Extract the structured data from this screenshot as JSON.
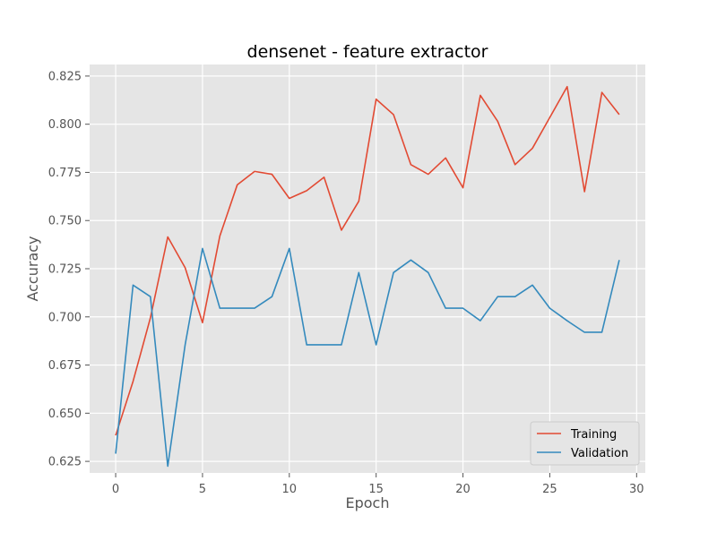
{
  "chart_data": {
    "type": "line",
    "title": "densenet - feature extractor",
    "xlabel": "Epoch",
    "ylabel": "Accuracy",
    "xlim": [
      -1.5,
      30.5
    ],
    "ylim": [
      0.619,
      0.831
    ],
    "xticks": [
      0,
      5,
      10,
      15,
      20,
      25,
      30
    ],
    "xtick_labels": [
      "0",
      "5",
      "10",
      "15",
      "20",
      "25",
      "30"
    ],
    "yticks": [
      0.625,
      0.65,
      0.675,
      0.7,
      0.725,
      0.75,
      0.775,
      0.8,
      0.825
    ],
    "ytick_labels": [
      "0.625",
      "0.650",
      "0.675",
      "0.700",
      "0.725",
      "0.750",
      "0.775",
      "0.800",
      "0.825"
    ],
    "grid": true,
    "legend_position": "bottom-right",
    "x": [
      0,
      1,
      2,
      3,
      4,
      5,
      6,
      7,
      8,
      9,
      10,
      11,
      12,
      13,
      14,
      15,
      16,
      17,
      18,
      19,
      20,
      21,
      22,
      23,
      24,
      25,
      26,
      27,
      28,
      29
    ],
    "series": [
      {
        "name": "Training",
        "color": "#e24a33",
        "values": [
          0.6385,
          0.6665,
          0.6995,
          0.7415,
          0.7255,
          0.697,
          0.742,
          0.7685,
          0.7755,
          0.774,
          0.7615,
          0.7655,
          0.7725,
          0.745,
          0.76,
          0.813,
          0.805,
          0.779,
          0.774,
          0.7825,
          0.767,
          0.815,
          0.8015,
          0.779,
          0.7875,
          0.8035,
          0.8195,
          0.765,
          0.8165,
          0.805
        ]
      },
      {
        "name": "Validation",
        "color": "#348abd",
        "values": [
          0.629,
          0.7165,
          0.7105,
          0.6225,
          0.6855,
          0.7355,
          0.7045,
          0.7045,
          0.7045,
          0.7105,
          0.7355,
          0.6855,
          0.6855,
          0.6855,
          0.723,
          0.6855,
          0.723,
          0.7295,
          0.723,
          0.7045,
          0.7045,
          0.698,
          0.7105,
          0.7105,
          0.7165,
          0.7045,
          0.698,
          0.692,
          0.692,
          0.7295
        ]
      }
    ]
  },
  "colors": {
    "plot_background": "#e5e5e5",
    "grid": "#ffffff"
  }
}
